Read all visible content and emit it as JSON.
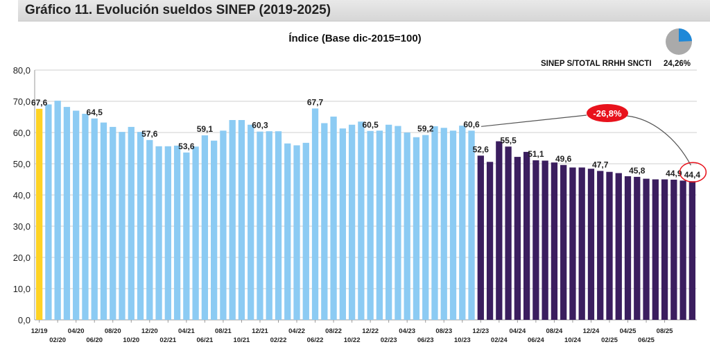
{
  "header": {
    "title": "Gráfico 11. Evolución sueldos SINEP (2019-2025)"
  },
  "chart_data": {
    "type": "bar",
    "title": "Índice (Base dic-2015=100)",
    "ylim": [
      0,
      80
    ],
    "yticks": [
      "0,0",
      "10,0",
      "20,0",
      "30,0",
      "40,0",
      "50,0",
      "60,0",
      "70,0",
      "80,0"
    ],
    "ytick_values": [
      0,
      10,
      20,
      30,
      40,
      50,
      60,
      70,
      80
    ],
    "grid": true,
    "colors": {
      "first": "#FFD324",
      "previous": "#8CCBF3",
      "current": "#3B1E5F"
    },
    "values": [
      67.6,
      69.0,
      70.2,
      68.2,
      67.0,
      66.0,
      64.5,
      63.2,
      61.8,
      60.2,
      61.8,
      60.2,
      57.6,
      55.6,
      55.6,
      55.8,
      53.6,
      55.5,
      59.1,
      57.4,
      60.6,
      64.0,
      64.0,
      62.5,
      60.3,
      60.4,
      60.4,
      56.5,
      55.9,
      56.7,
      67.7,
      63.0,
      65.1,
      61.3,
      62.5,
      63.5,
      60.5,
      60.6,
      62.5,
      62.1,
      60.0,
      58.5,
      59.2,
      62.0,
      61.5,
      60.6,
      62.2,
      60.6,
      52.6,
      50.6,
      57.2,
      55.5,
      52.2,
      53.8,
      51.1,
      51.0,
      50.4,
      49.6,
      48.8,
      48.8,
      48.4,
      47.7,
      47.4,
      47.0,
      46.0,
      45.8,
      45.2,
      45.0,
      45.0,
      44.9,
      44.6,
      44.4
    ],
    "series_split_index": 48,
    "data_labels": [
      {
        "index": 0,
        "text": "67,6"
      },
      {
        "index": 6,
        "text": "64,5"
      },
      {
        "index": 12,
        "text": "57,6"
      },
      {
        "index": 16,
        "text": "53,6"
      },
      {
        "index": 18,
        "text": "59,1"
      },
      {
        "index": 24,
        "text": "60,3"
      },
      {
        "index": 30,
        "text": "67,7"
      },
      {
        "index": 36,
        "text": "60,5"
      },
      {
        "index": 42,
        "text": "59,2"
      },
      {
        "index": 47,
        "text": "60,6"
      },
      {
        "index": 48,
        "text": "52,6"
      },
      {
        "index": 51,
        "text": "55,5"
      },
      {
        "index": 54,
        "text": "51,1"
      },
      {
        "index": 57,
        "text": "49,6"
      },
      {
        "index": 61,
        "text": "47,7"
      },
      {
        "index": 65,
        "text": "45,8"
      },
      {
        "index": 69,
        "text": "44,9"
      },
      {
        "index": 71,
        "text": "44,4"
      }
    ],
    "x_tick_labels": [
      {
        "index": 0,
        "text": "12/19"
      },
      {
        "index": 2,
        "text": "02/20"
      },
      {
        "index": 4,
        "text": "04/20"
      },
      {
        "index": 6,
        "text": "06/20"
      },
      {
        "index": 8,
        "text": "08/20"
      },
      {
        "index": 10,
        "text": "10/20"
      },
      {
        "index": 12,
        "text": "12/20"
      },
      {
        "index": 14,
        "text": "02/21"
      },
      {
        "index": 16,
        "text": "04/21"
      },
      {
        "index": 18,
        "text": "06/21"
      },
      {
        "index": 20,
        "text": "08/21"
      },
      {
        "index": 22,
        "text": "10/21"
      },
      {
        "index": 24,
        "text": "12/21"
      },
      {
        "index": 26,
        "text": "02/22"
      },
      {
        "index": 28,
        "text": "04/22"
      },
      {
        "index": 30,
        "text": "06/22"
      },
      {
        "index": 32,
        "text": "08/22"
      },
      {
        "index": 34,
        "text": "10/22"
      },
      {
        "index": 36,
        "text": "12/22"
      },
      {
        "index": 38,
        "text": "02/23"
      },
      {
        "index": 40,
        "text": "04/23"
      },
      {
        "index": 42,
        "text": "06/23"
      },
      {
        "index": 44,
        "text": "08/23"
      },
      {
        "index": 46,
        "text": "10/23"
      },
      {
        "index": 48,
        "text": "12/23"
      },
      {
        "index": 50,
        "text": "02/24"
      },
      {
        "index": 52,
        "text": "04/24"
      },
      {
        "index": 54,
        "text": "06/24"
      },
      {
        "index": 56,
        "text": "08/24"
      },
      {
        "index": 58,
        "text": "10/24"
      },
      {
        "index": 60,
        "text": "12/24"
      },
      {
        "index": 62,
        "text": "02/25"
      },
      {
        "index": 64,
        "text": "04/25"
      },
      {
        "index": 66,
        "text": "06/25"
      },
      {
        "index": 68,
        "text": "08/25"
      }
    ],
    "annotation": {
      "text": "-26,8%",
      "from_index": 47,
      "to_index": 71,
      "color": "#E8121C"
    },
    "inset": {
      "label": "SINEP S/TOTAL RRHH SNCTI",
      "value_text": "24,26%",
      "share": 0.2426,
      "slice_color": "#1E88D8",
      "rest_color": "#AAAAAA"
    }
  }
}
